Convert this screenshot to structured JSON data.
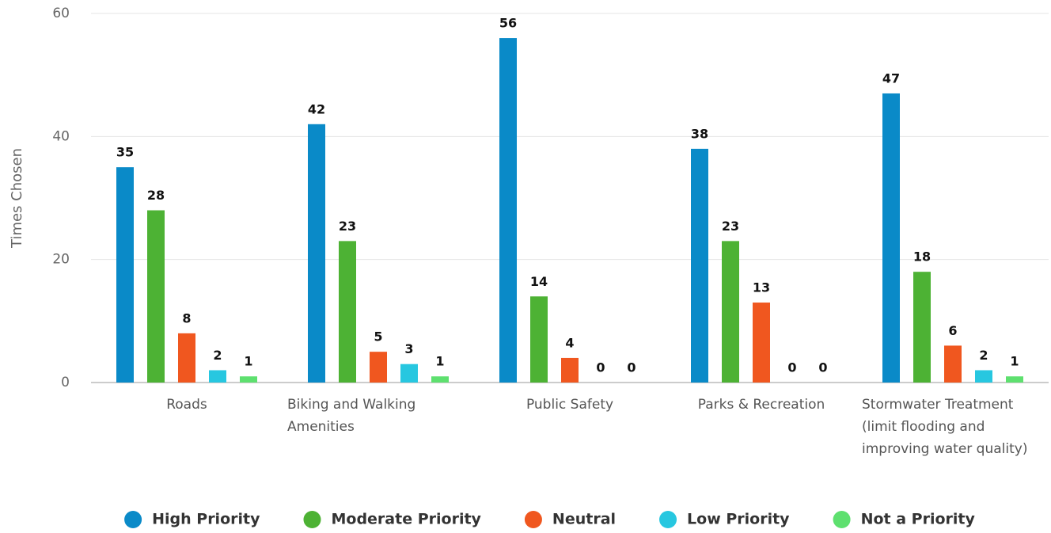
{
  "chart_data": {
    "type": "bar",
    "y_label": "Times Chosen",
    "categories": [
      "Roads",
      "Biking and Walking Amenities",
      "Public Safety",
      "Parks & Recreation",
      "Stormwater Treatment (limit flooding and improving water quality)"
    ],
    "series": [
      {
        "name": "High Priority",
        "color": "#0a8ac8",
        "values": [
          35,
          42,
          56,
          38,
          47
        ]
      },
      {
        "name": "Moderate Priority",
        "color": "#4db234",
        "values": [
          28,
          23,
          14,
          23,
          18
        ]
      },
      {
        "name": "Neutral",
        "color": "#f0571f",
        "values": [
          8,
          5,
          4,
          13,
          6
        ]
      },
      {
        "name": "Low Priority",
        "color": "#27c7e0",
        "values": [
          2,
          3,
          0,
          0,
          2
        ]
      },
      {
        "name": "Not a Priority",
        "color": "#5ee06f",
        "values": [
          1,
          1,
          0,
          0,
          1
        ]
      }
    ],
    "ylim": [
      0,
      60
    ],
    "yticks": [
      0,
      20,
      40,
      60
    ],
    "grid": true,
    "legend": "bottom"
  }
}
